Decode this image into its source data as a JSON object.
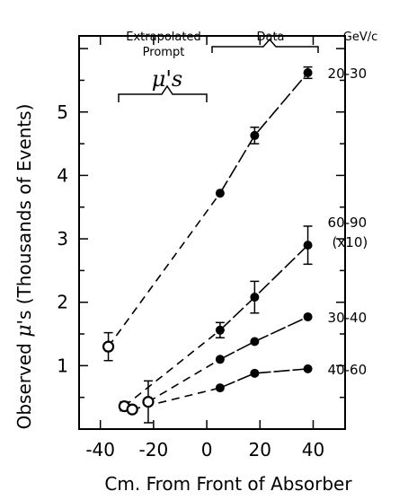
{
  "chart_data": {
    "type": "scatter",
    "xlabel": "Cm. From Front of Absorber",
    "ylabel_prefix": "Observed ",
    "ylabel_mu": "μ",
    "ylabel_suffix": "'s (Thousands of Events)",
    "xlim": [
      -48,
      52
    ],
    "ylim": [
      0,
      6.2
    ],
    "x_ticks": [
      -40,
      -20,
      0,
      20,
      40
    ],
    "y_ticks": [
      1,
      2,
      3,
      4,
      5
    ],
    "x_tick_labels": [
      "-40",
      "-20",
      "0",
      "20",
      "40"
    ],
    "y_tick_labels": [
      "1",
      "2",
      "3",
      "4",
      "5"
    ],
    "annotations": {
      "extrapolated_line1": "Extrapolated",
      "extrapolated_line2": "Prompt",
      "mu_label": "μ's",
      "data_label": "Data",
      "unit_label": "GeV/c"
    },
    "series": [
      {
        "name": "20-30",
        "label_lines": [
          "20-30"
        ],
        "points": [
          {
            "x": 5,
            "y": 3.72,
            "err": 0
          },
          {
            "x": 18,
            "y": 4.63,
            "err": 0.13
          },
          {
            "x": 38,
            "y": 5.62,
            "err": 0.09
          }
        ],
        "extrapolated": [
          {
            "x": -37,
            "y": 1.3,
            "err": 0.22
          }
        ]
      },
      {
        "name": "60-90 (x10)",
        "label_lines": [
          "60-90",
          "(x10)"
        ],
        "points": [
          {
            "x": 5,
            "y": 1.56,
            "err": 0.12
          },
          {
            "x": 18,
            "y": 2.08,
            "err": 0.25
          },
          {
            "x": 38,
            "y": 2.9,
            "err": 0.3
          }
        ],
        "extrapolated": [
          {
            "x": -31,
            "y": 0.36,
            "err": 0.07
          }
        ]
      },
      {
        "name": "30-40",
        "label_lines": [
          "30-40"
        ],
        "points": [
          {
            "x": 5,
            "y": 1.1,
            "err": 0
          },
          {
            "x": 18,
            "y": 1.38,
            "err": 0
          },
          {
            "x": 38,
            "y": 1.77,
            "err": 0
          }
        ],
        "extrapolated": [
          {
            "x": -22,
            "y": 0.43,
            "err": 0.33
          }
        ]
      },
      {
        "name": "40-60",
        "label_lines": [
          "40-60"
        ],
        "points": [
          {
            "x": 5,
            "y": 0.65,
            "err": 0
          },
          {
            "x": 18,
            "y": 0.88,
            "err": 0
          },
          {
            "x": 38,
            "y": 0.95,
            "err": 0
          }
        ],
        "extrapolated": [
          {
            "x": -28,
            "y": 0.31,
            "err": 0
          }
        ]
      }
    ]
  }
}
